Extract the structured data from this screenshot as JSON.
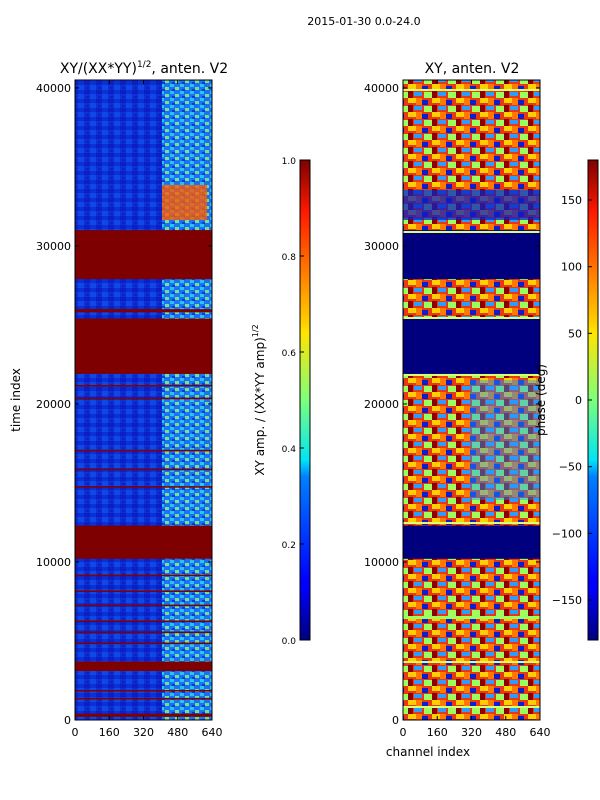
{
  "figure": {
    "suptitle": "2015-01-30 0.0-24.0"
  },
  "chart_data": [
    {
      "type": "heatmap",
      "title": "XY/(XX*YY)",
      "title_exponent": "1/2",
      "title_suffix": ", anten. V2",
      "xlabel": "",
      "ylabel": "time index",
      "xlim": [
        0,
        640
      ],
      "ylim": [
        0,
        40500
      ],
      "xticks": [
        0,
        160,
        320,
        480,
        640
      ],
      "yticks": [
        0,
        10000,
        20000,
        30000,
        40000
      ],
      "xtick_labels": [
        "0",
        "160",
        "320",
        "480",
        "640"
      ],
      "ytick_labels": [
        "0",
        "10000",
        "20000",
        "30000",
        "40000"
      ],
      "colorbar": {
        "label": "XY amp. / (XX*YY amp)",
        "label_exponent": "1/2",
        "range": [
          0.0,
          1.0
        ],
        "ticks": [
          0.0,
          0.2,
          0.4,
          0.6,
          0.8,
          1.0
        ],
        "tick_labels": [
          "0.0",
          "0.2",
          "0.4",
          "0.6",
          "0.8",
          "1.0"
        ],
        "colormap": "jet"
      },
      "saturated_time_bands": [
        [
          200,
          400
        ],
        [
          1300,
          1400
        ],
        [
          1800,
          1900
        ],
        [
          3100,
          3700
        ],
        [
          4800,
          4900
        ],
        [
          5500,
          5600
        ],
        [
          6200,
          6300
        ],
        [
          7200,
          7300
        ],
        [
          8100,
          8200
        ],
        [
          9100,
          9200
        ],
        [
          10200,
          12300
        ],
        [
          14700,
          14800
        ],
        [
          15800,
          15900
        ],
        [
          17000,
          17100
        ],
        [
          20300,
          20400
        ],
        [
          21100,
          21200
        ],
        [
          21900,
          25400
        ],
        [
          25800,
          26000
        ],
        [
          27900,
          31000
        ]
      ],
      "bright_channel_range": [
        400,
        640
      ]
    },
    {
      "type": "heatmap",
      "title": "XY, anten. V2",
      "xlabel": "channel index",
      "ylabel": "",
      "xlim": [
        0,
        640
      ],
      "ylim": [
        0,
        40500
      ],
      "xticks": [
        0,
        160,
        320,
        480,
        640
      ],
      "yticks": [
        0,
        10000,
        20000,
        30000,
        40000
      ],
      "xtick_labels": [
        "0",
        "160",
        "320",
        "480",
        "640"
      ],
      "ytick_labels": [
        "0",
        "10000",
        "20000",
        "30000",
        "40000"
      ],
      "colorbar": {
        "label": "phase (deg)",
        "range": [
          -180,
          180
        ],
        "ticks": [
          -150,
          -100,
          -50,
          0,
          50,
          100,
          150
        ],
        "tick_labels": [
          "−150",
          "−100",
          "−50",
          "0",
          "50",
          "100",
          "150"
        ],
        "colormap": "jet"
      },
      "flagged_time_bands": [
        [
          10200,
          12300
        ],
        [
          21900,
          25400
        ],
        [
          27900,
          31000
        ]
      ]
    }
  ]
}
